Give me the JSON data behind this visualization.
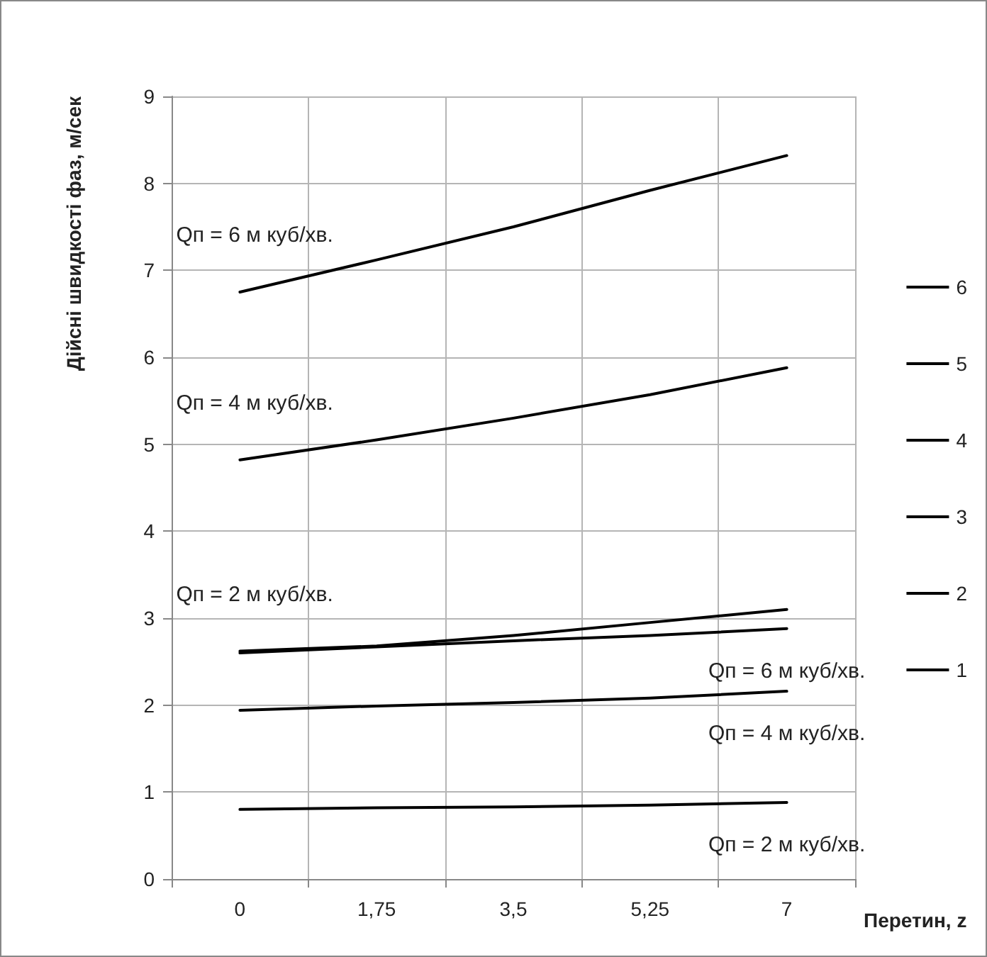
{
  "chart_data": {
    "type": "line",
    "ylabel": "Дійсні швидкості фаз, м/сек",
    "xlabel": "Перетин, z",
    "categories": [
      "0",
      "1,75",
      "3,5",
      "5,25",
      "7"
    ],
    "series": [
      {
        "name": "6",
        "color": "#000000",
        "values": [
          6.75,
          7.12,
          7.5,
          7.92,
          8.32
        ]
      },
      {
        "name": "5",
        "color": "#000000",
        "values": [
          4.82,
          5.05,
          5.3,
          5.57,
          5.88
        ]
      },
      {
        "name": "4",
        "color": "#000000",
        "values": [
          2.62,
          2.68,
          2.8,
          2.95,
          3.1
        ]
      },
      {
        "name": "3",
        "color": "#000000",
        "values": [
          2.6,
          2.67,
          2.74,
          2.8,
          2.88
        ]
      },
      {
        "name": "2",
        "color": "#000000",
        "values": [
          1.94,
          1.99,
          2.03,
          2.08,
          2.16
        ]
      },
      {
        "name": "1",
        "color": "#000000",
        "values": [
          0.8,
          0.82,
          0.83,
          0.85,
          0.88
        ]
      }
    ],
    "ylim": [
      0,
      9
    ],
    "yticks": [
      0,
      1,
      2,
      3,
      4,
      5,
      6,
      7,
      8,
      9
    ],
    "grid": true,
    "legend": "right",
    "marker": "none",
    "line_style": "solid",
    "annotations": [
      "Qп = 6 м куб/хв.",
      "Qп = 4 м куб/хв.",
      "Qп = 2 м куб/хв.",
      "Qп = 6 м куб/хв.",
      "Qп = 4 м куб/хв.",
      "Qп = 2 м куб/хв."
    ]
  }
}
